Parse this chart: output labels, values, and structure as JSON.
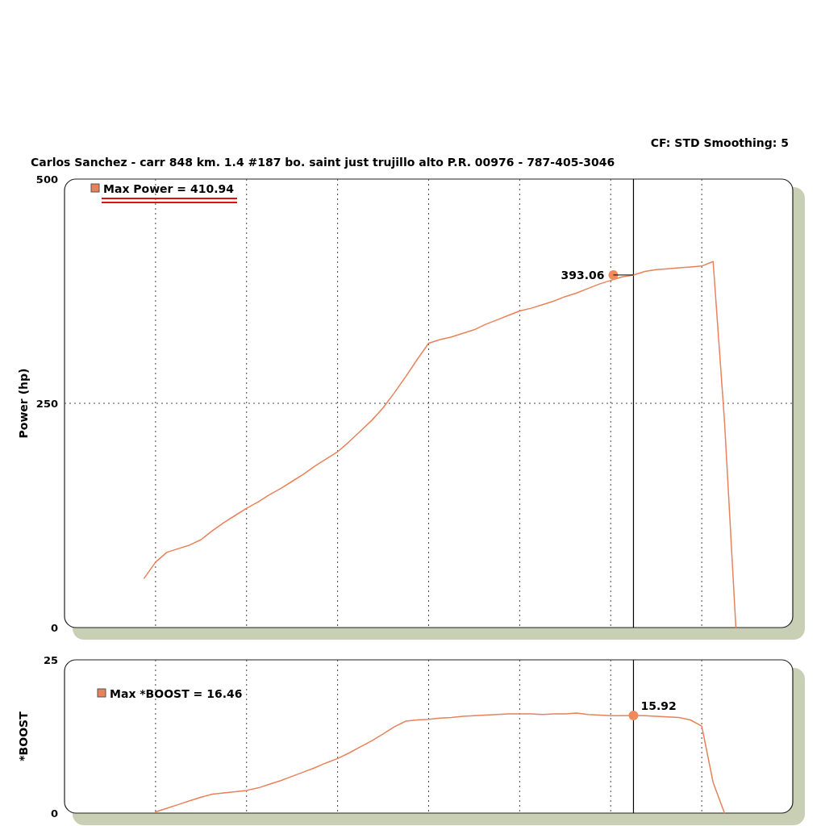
{
  "chart_data": [
    {
      "type": "line",
      "title": "Carlos Sanchez - carr 848 km. 1.4 #187 bo. saint just trujillo alto P.R. 00976 - 787-405-3046",
      "subtitle": "CF: STD  Smoothing: 5",
      "ylabel": "Power (hp)",
      "categories": [
        null,
        null,
        null,
        null,
        null,
        null,
        null,
        null,
        null,
        null,
        null,
        null,
        null,
        null,
        null,
        null,
        null,
        null,
        null,
        null,
        null,
        null,
        null,
        null,
        null,
        null,
        null,
        null,
        null,
        null,
        null,
        null,
        null,
        null,
        null,
        null,
        null,
        null,
        null,
        null,
        null,
        null,
        null,
        null,
        null,
        null,
        null,
        null,
        null,
        null,
        null,
        null,
        null,
        null,
        null,
        null,
        null,
        null,
        null,
        null,
        null,
        null,
        null,
        null,
        null
      ],
      "ylim": [
        0,
        500
      ],
      "yticks": [
        0,
        250,
        500
      ],
      "grid": true,
      "legend": "top left",
      "marker": "none",
      "line_style": "solid",
      "series": [
        {
          "name": "Max Power = 410.94",
          "color": "#e8825a",
          "values": [
            null,
            null,
            null,
            null,
            null,
            null,
            null,
            55,
            73,
            84,
            88,
            92,
            98,
            108,
            117,
            125,
            133,
            140,
            148,
            155,
            163,
            171,
            180,
            188,
            196,
            207,
            219,
            231,
            245,
            262,
            280,
            299,
            317,
            321,
            324,
            328,
            332,
            338,
            343,
            348,
            353,
            356,
            360,
            364,
            369,
            373,
            378,
            383,
            387,
            391,
            393.06,
            397,
            399,
            400,
            401,
            402,
            403,
            408,
            230,
            0,
            null,
            null,
            null,
            null,
            null
          ],
          "value_labels": [
            null,
            null,
            null,
            null,
            null,
            null,
            null,
            null,
            null,
            null,
            null,
            null,
            null,
            null,
            null,
            null,
            null,
            null,
            null,
            null,
            null,
            null,
            null,
            null,
            null,
            null,
            null,
            null,
            null,
            null,
            null,
            null,
            null,
            null,
            null,
            null,
            null,
            null,
            null,
            null,
            null,
            null,
            null,
            null,
            null,
            null,
            null,
            null,
            null,
            null,
            "393.06",
            null,
            null,
            null,
            null,
            null,
            null,
            null,
            null,
            null,
            null,
            null,
            null,
            null,
            null
          ]
        }
      ]
    },
    {
      "type": "line",
      "ylabel": "*BOOST",
      "categories": [
        null,
        null,
        null,
        null,
        null,
        null,
        null,
        null,
        null,
        null,
        null,
        null,
        null,
        null,
        null,
        null,
        null,
        null,
        null,
        null,
        null,
        null,
        null,
        null,
        null,
        null,
        null,
        null,
        null,
        null,
        null,
        null,
        null,
        null,
        null,
        null,
        null,
        null,
        null,
        null,
        null,
        null,
        null,
        null,
        null,
        null,
        null,
        null,
        null,
        null,
        null,
        null,
        null,
        null,
        null,
        null,
        null,
        null,
        null,
        null,
        null,
        null,
        null,
        null,
        null
      ],
      "ylim": [
        0,
        25
      ],
      "yticks": [
        0,
        25
      ],
      "grid": "x",
      "legend": "top left",
      "marker": "none",
      "line_style": "solid",
      "series": [
        {
          "name": "Max *BOOST = 16.46",
          "color": "#e8825a",
          "values": [
            null,
            null,
            null,
            null,
            null,
            null,
            null,
            null,
            0.2,
            0.8,
            1.4,
            2.0,
            2.6,
            3.1,
            3.3,
            3.5,
            3.7,
            4.1,
            4.7,
            5.3,
            6.0,
            6.7,
            7.4,
            8.2,
            8.9,
            9.8,
            10.8,
            11.8,
            12.9,
            14.1,
            15.0,
            15.2,
            15.3,
            15.5,
            15.6,
            15.8,
            15.9,
            16.0,
            16.1,
            16.2,
            16.2,
            16.2,
            16.1,
            16.2,
            16.2,
            16.3,
            16.1,
            16.0,
            15.9,
            15.9,
            15.92,
            15.9,
            15.8,
            15.7,
            15.6,
            15.2,
            14.2,
            5,
            0,
            null,
            null,
            null,
            null,
            null,
            null
          ],
          "value_labels": [
            null,
            null,
            null,
            null,
            null,
            null,
            null,
            null,
            null,
            null,
            null,
            null,
            null,
            null,
            null,
            null,
            null,
            null,
            null,
            null,
            null,
            null,
            null,
            null,
            null,
            null,
            null,
            null,
            null,
            null,
            null,
            null,
            null,
            null,
            null,
            null,
            null,
            null,
            null,
            null,
            null,
            null,
            null,
            null,
            null,
            null,
            null,
            null,
            null,
            null,
            "15.92",
            null,
            null,
            null,
            null,
            null,
            null,
            null,
            null,
            null,
            null,
            null,
            null,
            null,
            null
          ]
        }
      ]
    }
  ]
}
